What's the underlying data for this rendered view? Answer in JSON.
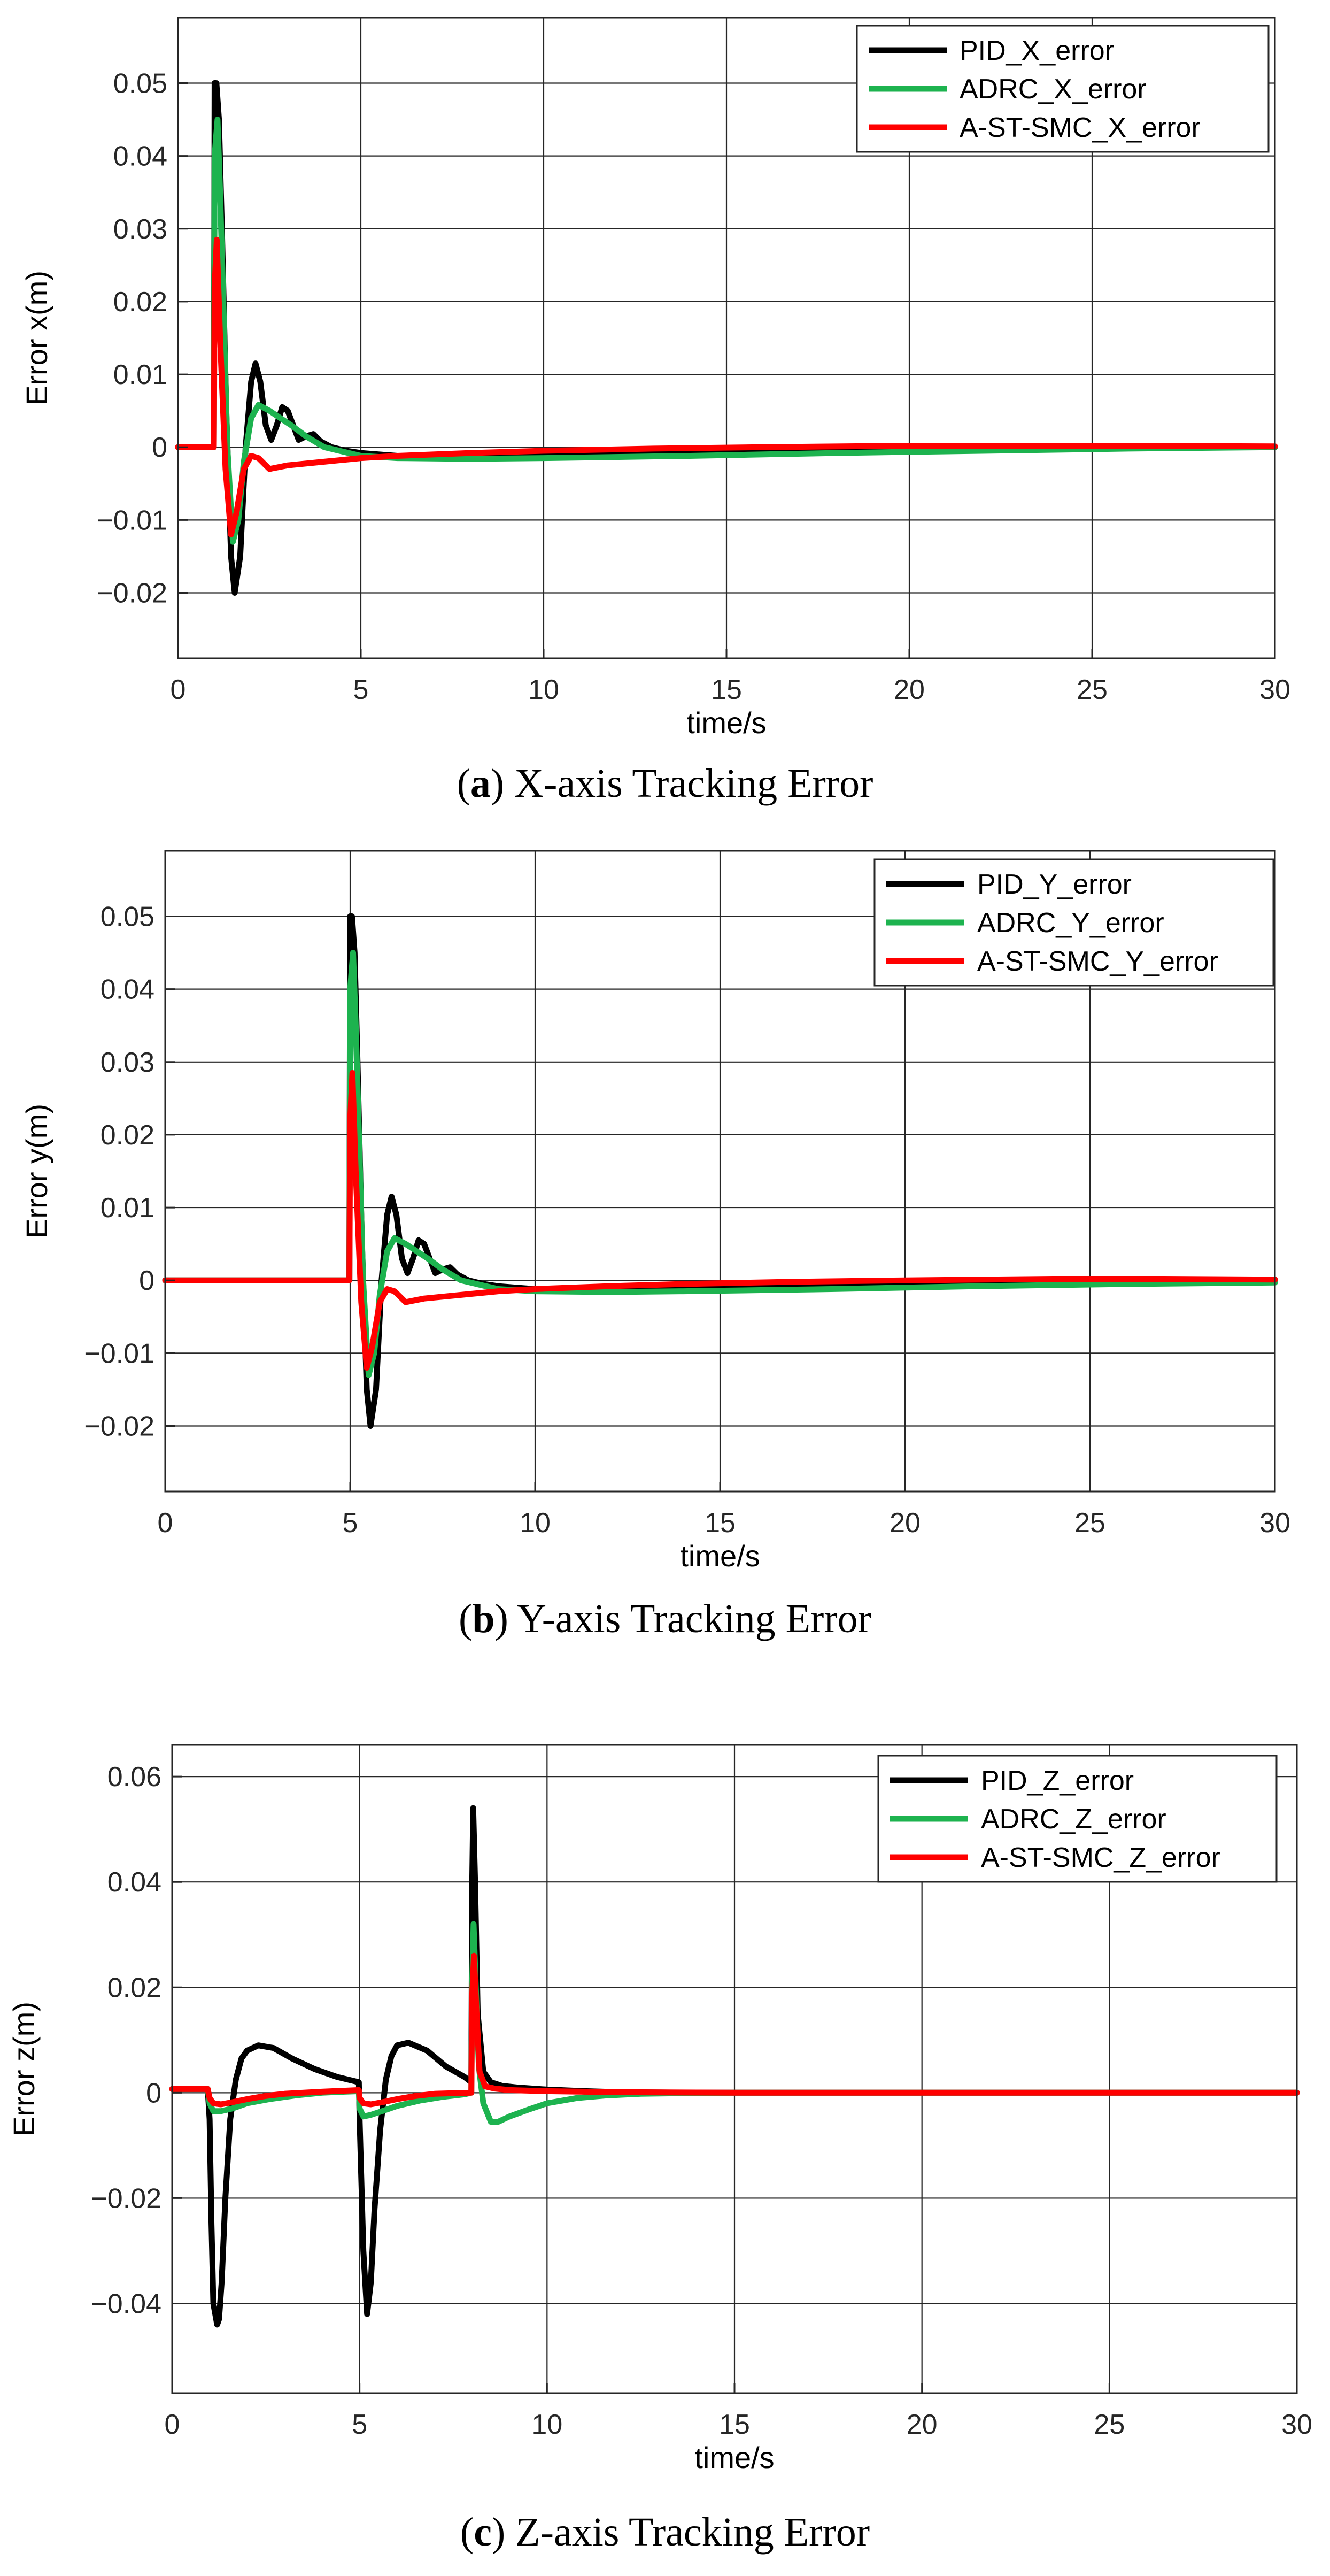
{
  "chart_data": [
    {
      "type": "line",
      "caption_letter": "a",
      "caption_text": " X-axis Tracking Error",
      "xlabel": "time/s",
      "ylabel": "Error x(m)",
      "xlim": [
        0,
        30
      ],
      "ylim": [
        -0.029,
        0.059
      ],
      "xticks": [
        0,
        5,
        10,
        15,
        20,
        25,
        30
      ],
      "yticks": [
        -0.02,
        -0.01,
        0,
        0.01,
        0.02,
        0.03,
        0.04,
        0.05
      ],
      "ytick_labels": [
        "−0.02",
        "−0.01",
        "0",
        "0.01",
        "0.02",
        "0.03",
        "0.04",
        "0.05"
      ],
      "grid": true,
      "legend_position": "top-right",
      "colors": [
        "#000000",
        "#1db34f",
        "#ff0000"
      ],
      "series": [
        {
          "name": "PID_X_error",
          "x": [
            0,
            0.98,
            1.0,
            1.05,
            1.12,
            1.2,
            1.32,
            1.45,
            1.55,
            1.7,
            1.85,
            2.0,
            2.12,
            2.25,
            2.4,
            2.55,
            2.7,
            2.85,
            3.0,
            3.15,
            3.3,
            3.5,
            3.7,
            3.9,
            4.2,
            4.6,
            5.0,
            5.5,
            6.0,
            7.0,
            9.0,
            12.0,
            16.0,
            20.0,
            25.0,
            30.0
          ],
          "y": [
            0,
            0,
            0.05,
            0.05,
            0.045,
            0.03,
            0.005,
            -0.015,
            -0.02,
            -0.015,
            0.0,
            0.009,
            0.0115,
            0.009,
            0.003,
            0.001,
            0.003,
            0.0055,
            0.005,
            0.003,
            0.001,
            0.0015,
            0.0018,
            0.0008,
            0.0,
            -0.0005,
            -0.0008,
            -0.001,
            -0.0012,
            -0.0013,
            -0.0013,
            -0.001,
            -0.0006,
            -0.0003,
            -0.0001,
            0.0
          ]
        },
        {
          "name": "ADRC_X_error",
          "x": [
            0,
            0.98,
            1.0,
            1.08,
            1.15,
            1.25,
            1.35,
            1.5,
            1.65,
            1.8,
            2.0,
            2.2,
            2.5,
            2.8,
            3.1,
            3.5,
            4.0,
            5.0,
            6.0,
            8.0,
            10.0,
            14.0,
            18.0,
            22.0,
            26.0,
            30.0
          ],
          "y": [
            0,
            0,
            0.04,
            0.045,
            0.035,
            0.018,
            0.0,
            -0.013,
            -0.01,
            -0.002,
            0.004,
            0.0058,
            0.005,
            0.004,
            0.003,
            0.0015,
            0.0,
            -0.0012,
            -0.0015,
            -0.0016,
            -0.0015,
            -0.0012,
            -0.0008,
            -0.0005,
            -0.0002,
            0.0
          ]
        },
        {
          "name": "A-ST-SMC_X_error",
          "x": [
            0,
            0.98,
            1.0,
            1.06,
            1.15,
            1.3,
            1.45,
            1.6,
            1.8,
            2.0,
            2.2,
            2.5,
            3.0,
            4.0,
            5.0,
            6.0,
            8.0,
            10.0,
            13.0,
            16.0,
            20.0,
            25.0,
            30.0
          ],
          "y": [
            0,
            0,
            0.022,
            0.0285,
            0.015,
            -0.003,
            -0.012,
            -0.009,
            -0.003,
            -0.0012,
            -0.0015,
            -0.003,
            -0.0025,
            -0.002,
            -0.0015,
            -0.0012,
            -0.0008,
            -0.0005,
            -0.0002,
            0.0,
            0.0002,
            0.0002,
            0.0001
          ]
        }
      ]
    },
    {
      "type": "line",
      "caption_letter": "b",
      "caption_text": " Y-axis Tracking Error",
      "xlabel": "time/s",
      "ylabel": "Error y(m)",
      "xlim": [
        0,
        30
      ],
      "ylim": [
        -0.029,
        0.059
      ],
      "xticks": [
        0,
        5,
        10,
        15,
        20,
        25,
        30
      ],
      "yticks": [
        -0.02,
        -0.01,
        0,
        0.01,
        0.02,
        0.03,
        0.04,
        0.05
      ],
      "ytick_labels": [
        "−0.02",
        "−0.01",
        "0",
        "0.01",
        "0.02",
        "0.03",
        "0.04",
        "0.05"
      ],
      "grid": true,
      "legend_position": "top-right",
      "colors": [
        "#000000",
        "#1db34f",
        "#ff0000"
      ],
      "series": [
        {
          "name": "PID_Y_error",
          "x": [
            0,
            4.98,
            5.0,
            5.05,
            5.12,
            5.2,
            5.32,
            5.45,
            5.55,
            5.7,
            5.85,
            6.0,
            6.12,
            6.25,
            6.4,
            6.55,
            6.7,
            6.85,
            7.0,
            7.15,
            7.3,
            7.5,
            7.7,
            7.9,
            8.2,
            8.6,
            9.0,
            9.5,
            10.0,
            11.0,
            13.0,
            16.0,
            20.0,
            24.0,
            27.0,
            30.0
          ],
          "y": [
            0,
            0,
            0.05,
            0.05,
            0.045,
            0.03,
            0.005,
            -0.015,
            -0.02,
            -0.015,
            0.0,
            0.009,
            0.0115,
            0.009,
            0.003,
            0.001,
            0.003,
            0.0055,
            0.005,
            0.003,
            0.001,
            0.0015,
            0.0018,
            0.0008,
            0.0,
            -0.0005,
            -0.0008,
            -0.001,
            -0.0012,
            -0.0013,
            -0.0013,
            -0.001,
            -0.0006,
            -0.0003,
            -0.0001,
            0.0
          ]
        },
        {
          "name": "ADRC_Y_error",
          "x": [
            0,
            4.98,
            5.0,
            5.08,
            5.15,
            5.25,
            5.35,
            5.5,
            5.65,
            5.8,
            6.0,
            6.2,
            6.5,
            6.8,
            7.1,
            7.5,
            8.0,
            9.0,
            10.0,
            12.0,
            14.0,
            18.0,
            22.0,
            26.0,
            30.0
          ],
          "y": [
            0,
            0,
            0.04,
            0.045,
            0.035,
            0.018,
            0.0,
            -0.013,
            -0.01,
            -0.002,
            0.004,
            0.0058,
            0.005,
            0.004,
            0.003,
            0.0015,
            0.0,
            -0.0012,
            -0.0015,
            -0.0016,
            -0.0015,
            -0.0012,
            -0.0008,
            -0.0005,
            -0.0003
          ]
        },
        {
          "name": "A-ST-SMC_Y_error",
          "x": [
            0,
            4.98,
            5.0,
            5.06,
            5.15,
            5.3,
            5.45,
            5.6,
            5.8,
            6.0,
            6.2,
            6.5,
            7.0,
            8.0,
            9.0,
            10.0,
            12.0,
            14.0,
            17.0,
            20.0,
            24.0,
            27.0,
            30.0
          ],
          "y": [
            0,
            0,
            0.022,
            0.0285,
            0.015,
            -0.003,
            -0.012,
            -0.009,
            -0.003,
            -0.0012,
            -0.0015,
            -0.003,
            -0.0025,
            -0.002,
            -0.0015,
            -0.0012,
            -0.0008,
            -0.0005,
            -0.0002,
            0.0,
            0.0002,
            0.0002,
            0.0001
          ]
        }
      ]
    },
    {
      "type": "line",
      "caption_letter": "c",
      "caption_text": " Z-axis Tracking Error",
      "xlabel": "time/s",
      "ylabel": "Error z(m)",
      "xlim": [
        0,
        30
      ],
      "ylim": [
        -0.057,
        0.066
      ],
      "xticks": [
        0,
        5,
        10,
        15,
        20,
        25,
        30
      ],
      "yticks": [
        -0.04,
        -0.02,
        0,
        0.02,
        0.04,
        0.06
      ],
      "ytick_labels": [
        "−0.04",
        "−0.02",
        "0",
        "0.02",
        "0.04",
        "0.06"
      ],
      "grid": true,
      "legend_position": "top-right",
      "colors": [
        "#000000",
        "#1db34f",
        "#ff0000"
      ],
      "series": [
        {
          "name": "PID_Z_error",
          "x": [
            0,
            0.95,
            1.0,
            1.05,
            1.1,
            1.2,
            1.25,
            1.32,
            1.42,
            1.55,
            1.7,
            1.85,
            2.0,
            2.3,
            2.7,
            3.2,
            3.8,
            4.4,
            4.98,
            5.0,
            5.1,
            5.2,
            5.3,
            5.4,
            5.55,
            5.7,
            5.85,
            6.0,
            6.3,
            6.8,
            7.3,
            7.8,
            7.98,
            8.0,
            8.03,
            8.08,
            8.15,
            8.3,
            8.5,
            8.8,
            9.2,
            10.0,
            11.0,
            12.0,
            14.0,
            18.0,
            22.0,
            26.0,
            30.0
          ],
          "y": [
            0.0007,
            0.0007,
            -0.005,
            -0.025,
            -0.04,
            -0.044,
            -0.043,
            -0.036,
            -0.02,
            -0.005,
            0.0025,
            0.0065,
            0.008,
            0.009,
            0.0085,
            0.0065,
            0.0045,
            0.003,
            0.002,
            -0.005,
            -0.03,
            -0.042,
            -0.036,
            -0.022,
            -0.007,
            0.0025,
            0.007,
            0.009,
            0.0095,
            0.008,
            0.005,
            0.003,
            0.002,
            0.038,
            0.054,
            0.04,
            0.015,
            0.004,
            0.002,
            0.0013,
            0.001,
            0.0006,
            0.0003,
            0.0001,
            0.0,
            0.0,
            0.0,
            0.0,
            0.0
          ]
        },
        {
          "name": "ADRC_Z_error",
          "x": [
            0,
            0.95,
            1.0,
            1.1,
            1.3,
            1.6,
            2.0,
            2.6,
            3.3,
            4.0,
            4.6,
            4.98,
            5.0,
            5.1,
            5.3,
            5.6,
            6.0,
            6.6,
            7.2,
            7.8,
            7.98,
            8.0,
            8.04,
            8.1,
            8.18,
            8.3,
            8.5,
            8.7,
            9.0,
            9.5,
            10.0,
            10.8,
            11.6,
            12.5,
            13.5,
            15.0,
            20.0,
            25.0,
            30.0
          ],
          "y": [
            0.0007,
            0.0007,
            -0.002,
            -0.0035,
            -0.0035,
            -0.003,
            -0.002,
            -0.0012,
            -0.0005,
            0.0,
            0.0002,
            0.0003,
            -0.003,
            -0.0045,
            -0.0042,
            -0.0035,
            -0.0025,
            -0.0015,
            -0.0008,
            -0.0003,
            0.0,
            0.02,
            0.032,
            0.02,
            0.005,
            -0.002,
            -0.0055,
            -0.0055,
            -0.0045,
            -0.0032,
            -0.002,
            -0.001,
            -0.0005,
            -0.0002,
            -0.0001,
            0.0,
            0.0,
            0.0,
            0.0
          ]
        },
        {
          "name": "A-ST-SMC_Z_error",
          "x": [
            0,
            0.95,
            1.0,
            1.1,
            1.3,
            1.6,
            2.0,
            2.5,
            3.0,
            4.0,
            4.98,
            5.0,
            5.1,
            5.3,
            5.6,
            6.0,
            6.5,
            7.0,
            7.98,
            8.0,
            8.05,
            8.12,
            8.2,
            8.35,
            8.6,
            9.0,
            10.0,
            12.0,
            15.0,
            20.0,
            25.0,
            30.0
          ],
          "y": [
            0.0007,
            0.0007,
            -0.001,
            -0.002,
            -0.0022,
            -0.0018,
            -0.0012,
            -0.0006,
            -0.0002,
            0.0002,
            0.0005,
            -0.001,
            -0.002,
            -0.0022,
            -0.0018,
            -0.0012,
            -0.0006,
            -0.0002,
            0.0,
            0.018,
            0.026,
            0.015,
            0.004,
            0.0012,
            0.0008,
            0.0005,
            0.0003,
            0.0001,
            0.0,
            0.0,
            0.0,
            0.0
          ]
        }
      ]
    }
  ]
}
